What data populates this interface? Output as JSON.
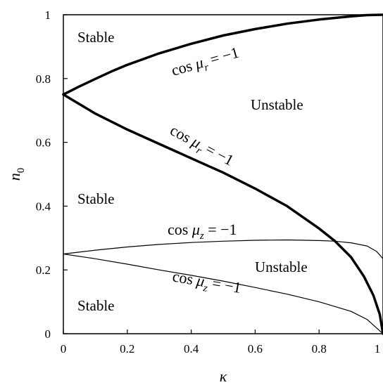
{
  "chart_data": {
    "type": "line",
    "title": "",
    "xlabel": "κ",
    "ylabel": "n0",
    "xlim": [
      0,
      1
    ],
    "ylim": [
      0,
      1
    ],
    "x_ticks": [
      "0",
      "0.2",
      "0.4",
      "0.6",
      "0.8",
      "1"
    ],
    "y_ticks": [
      "0",
      "0.2",
      "0.4",
      "0.6",
      "0.8",
      "1"
    ],
    "grid": false,
    "series": [
      {
        "weight": "thick",
        "x": [
          0.0,
          0.05,
          0.1,
          0.15,
          0.2,
          0.3,
          0.4,
          0.5,
          0.6,
          0.7,
          0.8,
          0.9,
          0.95,
          1.0
        ],
        "y": [
          0.75,
          0.775,
          0.799,
          0.822,
          0.843,
          0.879,
          0.909,
          0.935,
          0.955,
          0.972,
          0.985,
          0.995,
          0.999,
          1.0
        ]
      },
      {
        "weight": "thick",
        "x": [
          0.0,
          0.05,
          0.1,
          0.15,
          0.2,
          0.3,
          0.4,
          0.5,
          0.6,
          0.7,
          0.8,
          0.85,
          0.9,
          0.94,
          0.97,
          0.99,
          1.0
        ],
        "y": [
          0.75,
          0.72,
          0.69,
          0.665,
          0.64,
          0.595,
          0.55,
          0.505,
          0.455,
          0.4,
          0.33,
          0.29,
          0.24,
          0.18,
          0.12,
          0.06,
          0.0
        ]
      },
      {
        "weight": "thin",
        "x": [
          0.0,
          0.1,
          0.2,
          0.3,
          0.4,
          0.5,
          0.6,
          0.7,
          0.8,
          0.85,
          0.9,
          0.95,
          0.98,
          1.0
        ],
        "y": [
          0.25,
          0.262,
          0.272,
          0.28,
          0.286,
          0.29,
          0.293,
          0.294,
          0.292,
          0.29,
          0.285,
          0.275,
          0.258,
          0.235
        ]
      },
      {
        "weight": "thin",
        "x": [
          0.0,
          0.1,
          0.2,
          0.3,
          0.4,
          0.5,
          0.6,
          0.7,
          0.8,
          0.9,
          0.95,
          1.0
        ],
        "y": [
          0.25,
          0.235,
          0.218,
          0.2,
          0.183,
          0.165,
          0.145,
          0.124,
          0.1,
          0.07,
          0.045,
          0.0
        ]
      }
    ],
    "curve_labels": [
      {
        "prefix": "cos ",
        "greek": "μ",
        "sub": "r",
        "suffix": " = −1"
      },
      {
        "prefix": "cos ",
        "greek": "μ",
        "sub": "r",
        "suffix": " = −1"
      },
      {
        "prefix": "cos ",
        "greek": "μ",
        "sub": "z",
        "suffix": " = −1"
      },
      {
        "prefix": "cos ",
        "greek": "μ",
        "sub": "z",
        "suffix": " = −1"
      }
    ],
    "region_labels": [
      "Stable",
      "Unstable",
      "Stable",
      "Unstable",
      "Stable"
    ]
  }
}
